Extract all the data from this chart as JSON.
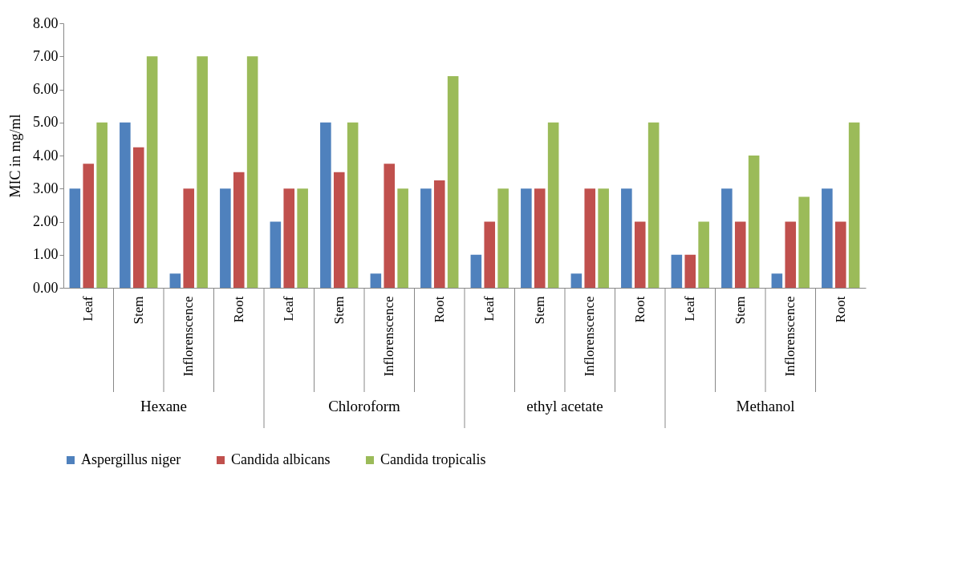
{
  "chart_data": {
    "type": "bar",
    "ylabel": "MIC in mg/ml",
    "categories": [
      "Leaf",
      "Stem",
      "Inflorenscence",
      "Root",
      "Leaf",
      "Stem",
      "Inflorenscence",
      "Root",
      "Leaf",
      "Stem",
      "Inflorenscence",
      "Root",
      "Leaf",
      "Stem",
      "Inflorenscence",
      "Root"
    ],
    "annotations": [
      "Hexane",
      "Chloroform",
      "ethyl acetate",
      "Methanol"
    ],
    "series": [
      {
        "name": "Aspergillus niger",
        "color": "#4f81bd",
        "values": [
          3,
          5,
          0.43,
          3,
          2,
          5,
          0.43,
          3,
          1,
          3,
          0.43,
          3,
          1,
          3,
          0.43,
          3
        ]
      },
      {
        "name": "Candida albicans",
        "color": "#c0504d",
        "values": [
          3.75,
          4.25,
          3,
          3.5,
          3,
          3.5,
          3.75,
          3.25,
          2,
          3,
          3,
          2,
          1,
          2,
          2,
          2
        ]
      },
      {
        "name": "Candida tropicalis",
        "color": "#9bbb59",
        "values": [
          5,
          7,
          7,
          7,
          3,
          5,
          3,
          6.4,
          3,
          5,
          3,
          5,
          2,
          4,
          2.75,
          5
        ]
      }
    ],
    "ylim": [
      0,
      8
    ],
    "yticks": [
      {
        "value": 0,
        "label": "0.00"
      },
      {
        "value": 1,
        "label": "1.00"
      },
      {
        "value": 2,
        "label": "2.00"
      },
      {
        "value": 3,
        "label": "3.00"
      },
      {
        "value": 4,
        "label": "4.00"
      },
      {
        "value": 5,
        "label": "5.00"
      },
      {
        "value": 6,
        "label": "6.00"
      },
      {
        "value": 7,
        "label": "7.00"
      },
      {
        "value": 8,
        "label": "8.00"
      }
    ],
    "legend": "bottom",
    "grid": false
  }
}
